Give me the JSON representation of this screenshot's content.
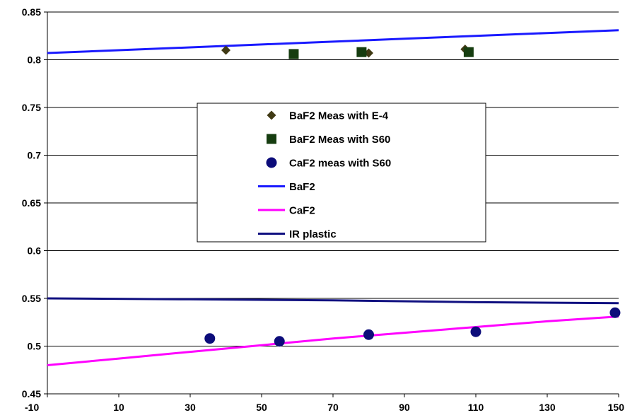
{
  "chart_data": {
    "type": "scatter",
    "title": "",
    "xlabel": "",
    "ylabel": "",
    "xlim": [
      -10,
      150
    ],
    "ylim": [
      0.45,
      0.85
    ],
    "x_ticks": [
      -10,
      10,
      30,
      50,
      70,
      90,
      110,
      130,
      150
    ],
    "y_ticks": [
      0.45,
      0.5,
      0.55,
      0.6,
      0.65,
      0.7,
      0.75,
      0.8,
      0.85
    ],
    "x_tick_labels": [
      "-10",
      "10",
      "30",
      "50",
      "70",
      "90",
      "110",
      "130",
      "150"
    ],
    "y_tick_labels": [
      "0.45",
      "0.5",
      "0.55",
      "0.6",
      "0.65",
      "0.7",
      "0.75",
      "0.8",
      "0.85"
    ],
    "grid": "horizontal",
    "legend_position": "center",
    "series": [
      {
        "name": "BaF2 Meas with E-4",
        "kind": "marker",
        "marker": "diamond",
        "color": "#403a14",
        "points": [
          [
            40,
            0.81
          ],
          [
            80,
            0.807
          ],
          [
            107,
            0.811
          ]
        ]
      },
      {
        "name": "BaF2 Meas with S60",
        "kind": "marker",
        "marker": "square",
        "color": "#163d10",
        "points": [
          [
            59,
            0.806
          ],
          [
            78,
            0.808
          ],
          [
            108,
            0.808
          ]
        ]
      },
      {
        "name": "CaF2 meas with S60",
        "kind": "marker",
        "marker": "circle",
        "color": "#0c0c7a",
        "points": [
          [
            35.5,
            0.508
          ],
          [
            55,
            0.505
          ],
          [
            80,
            0.512
          ],
          [
            110,
            0.515
          ],
          [
            149,
            0.535
          ]
        ]
      },
      {
        "name": "BaF2",
        "kind": "line",
        "color": "#1a1aff",
        "points": [
          [
            -10,
            0.807
          ],
          [
            10,
            0.81
          ],
          [
            30,
            0.813
          ],
          [
            50,
            0.816
          ],
          [
            70,
            0.819
          ],
          [
            90,
            0.822
          ],
          [
            110,
            0.825
          ],
          [
            130,
            0.828
          ],
          [
            150,
            0.831
          ]
        ]
      },
      {
        "name": "CaF2",
        "kind": "line",
        "color": "#ff00ff",
        "points": [
          [
            -10,
            0.48
          ],
          [
            10,
            0.487
          ],
          [
            30,
            0.494
          ],
          [
            50,
            0.501
          ],
          [
            70,
            0.508
          ],
          [
            90,
            0.514
          ],
          [
            110,
            0.52
          ],
          [
            130,
            0.526
          ],
          [
            150,
            0.531
          ]
        ]
      },
      {
        "name": "IR plastic",
        "kind": "line",
        "color": "#101080",
        "points": [
          [
            -10,
            0.55
          ],
          [
            30,
            0.549
          ],
          [
            70,
            0.548
          ],
          [
            110,
            0.546
          ],
          [
            150,
            0.545
          ]
        ]
      }
    ]
  }
}
